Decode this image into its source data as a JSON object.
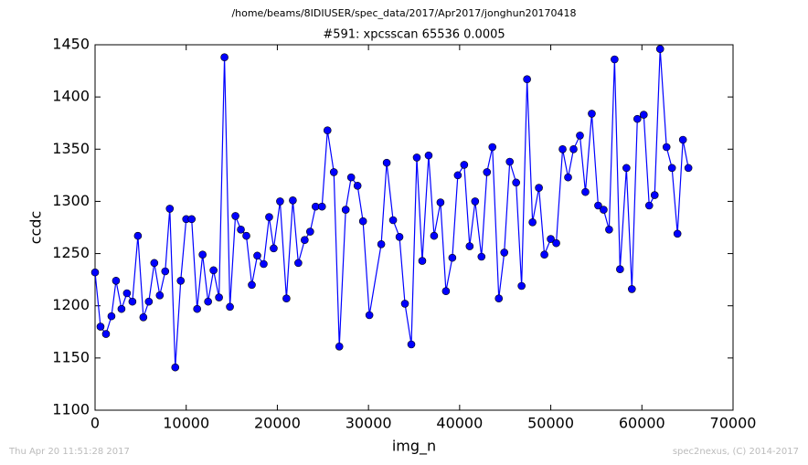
{
  "chart_data": {
    "type": "line",
    "suptitle": "/home/beams/8IDIUSER/spec_data/2017/Apr2017/jonghun20170418",
    "title": "#591: xpcsscan 65536 0.0005",
    "x_label": "img_n",
    "y_label": "ccdc",
    "footer_left": "Thu Apr 20 11:51:28 2017",
    "footer_right": "spec2nexus, (C) 2014-2017",
    "color": "#0000ff",
    "markers": true,
    "xlim": [
      0,
      70000
    ],
    "xticks": [
      0,
      10000,
      20000,
      30000,
      40000,
      50000,
      60000,
      70000
    ],
    "ylim": [
      1100,
      1450
    ],
    "yticks": [
      1100,
      1150,
      1200,
      1250,
      1300,
      1350,
      1400,
      1450
    ],
    "x": [
      0,
      600,
      1200,
      1800,
      2300,
      2900,
      3500,
      4100,
      4700,
      5300,
      5900,
      6500,
      7100,
      7700,
      8200,
      8800,
      9400,
      10000,
      10600,
      11200,
      11800,
      12400,
      13000,
      13600,
      14200,
      14800,
      15400,
      16000,
      16600,
      17200,
      17800,
      18500,
      19100,
      19600,
      20300,
      21000,
      21700,
      22300,
      23000,
      23600,
      24200,
      24900,
      25500,
      26200,
      26800,
      27500,
      28100,
      28800,
      29400,
      30100,
      31400,
      32000,
      32700,
      33400,
      34000,
      34700,
      35300,
      35900,
      36600,
      37200,
      37900,
      38500,
      39200,
      39800,
      40500,
      41100,
      41700,
      42400,
      43000,
      43600,
      44300,
      44900,
      45500,
      46200,
      46800,
      47400,
      48000,
      48700,
      49300,
      50000,
      50600,
      51300,
      51900,
      52500,
      53200,
      53800,
      54500,
      55200,
      55800,
      56400,
      57000,
      57600,
      58300,
      58900,
      59500,
      60200,
      60800,
      61400,
      62000,
      62700,
      63300,
      63900,
      64500,
      65100
    ],
    "values": [
      1232,
      1180,
      1173,
      1190,
      1224,
      1197,
      1212,
      1204,
      1267,
      1189,
      1204,
      1241,
      1210,
      1233,
      1293,
      1141,
      1224,
      1283,
      1283,
      1197,
      1249,
      1204,
      1234,
      1208,
      1438,
      1199,
      1286,
      1273,
      1267,
      1220,
      1248,
      1240,
      1285,
      1255,
      1300,
      1207,
      1301,
      1241,
      1263,
      1271,
      1295,
      1295,
      1368,
      1328,
      1161,
      1292,
      1323,
      1315,
      1281,
      1191,
      1259,
      1337,
      1282,
      1266,
      1202,
      1163,
      1342,
      1243,
      1344,
      1267,
      1299,
      1214,
      1246,
      1325,
      1335,
      1257,
      1300,
      1247,
      1328,
      1352,
      1207,
      1251,
      1338,
      1318,
      1219,
      1417,
      1280,
      1313,
      1249,
      1264,
      1260,
      1350,
      1323,
      1350,
      1363,
      1309,
      1384,
      1296,
      1292,
      1273,
      1436,
      1235,
      1332,
      1216,
      1379,
      1383,
      1296,
      1306,
      1446,
      1352,
      1332,
      1269,
      1359,
      1332
    ]
  }
}
